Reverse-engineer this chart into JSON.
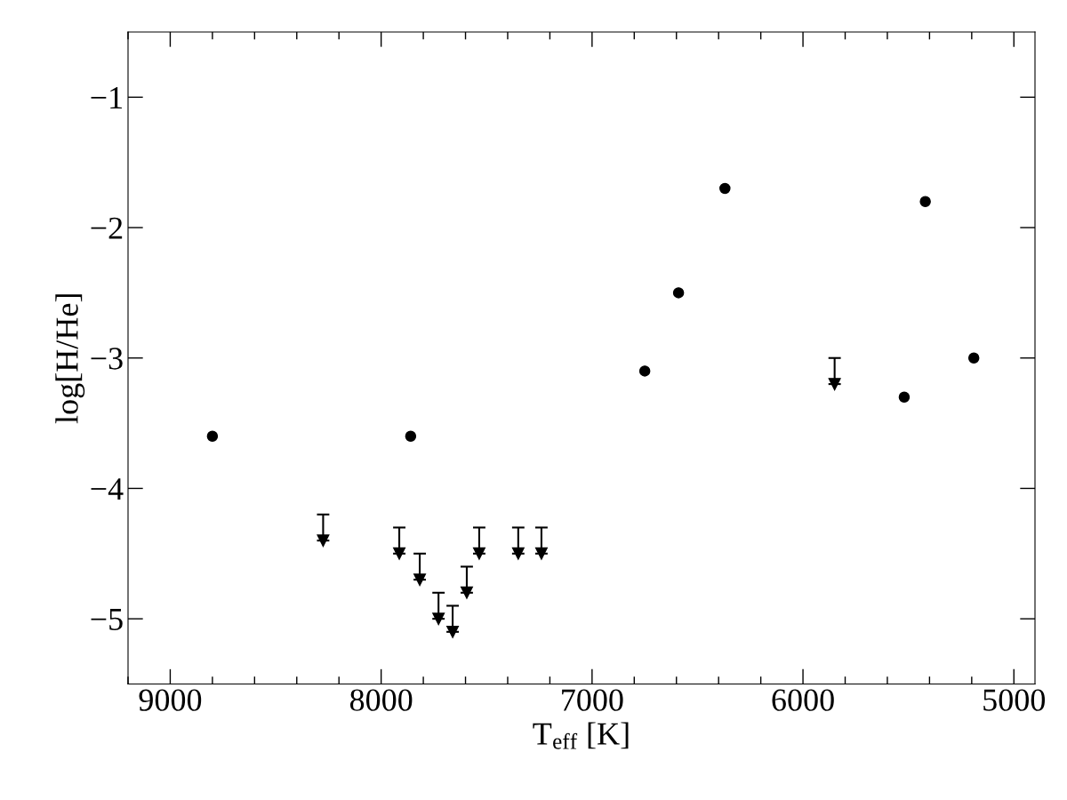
{
  "chart_data": {
    "type": "scatter",
    "xlabel": "T$_{eff}$ [K]",
    "ylabel": "log[H/He]",
    "xlim": [
      9200,
      4900
    ],
    "ylim": [
      -5.5,
      -0.5
    ],
    "xticks": [
      9000,
      8000,
      7000,
      6000,
      5000
    ],
    "yticks": [
      -5,
      -4,
      -3,
      -2,
      -1
    ],
    "grid": false,
    "series": [
      {
        "marker": "circle",
        "color": "#000000",
        "x": [
          8800,
          7860,
          6750,
          6590,
          6370,
          5520,
          5420,
          5190
        ],
        "values": [
          -3.6,
          -3.6,
          -3.1,
          -2.5,
          -1.7,
          -3.3,
          -1.8,
          -3.0
        ]
      },
      {
        "marker": "triangle",
        "color": "#000000",
        "x": [
          8275,
          7914,
          7817,
          7728,
          7661,
          7594,
          7535,
          7350,
          7240,
          5850
        ],
        "values": [
          -4.4,
          -4.5,
          -4.7,
          -5.0,
          -5.1,
          -4.8,
          -4.5,
          -4.5,
          -4.5,
          -3.2
        ],
        "errors": [
          [
            -4.4,
            -4.2
          ],
          [
            -4.5,
            -4.3
          ],
          [
            -4.7,
            -4.5
          ],
          [
            -5.0,
            -4.8
          ],
          [
            -5.1,
            -4.9
          ],
          [
            -4.8,
            -4.6
          ],
          [
            -4.5,
            -4.3
          ],
          [
            -4.5,
            -4.3
          ],
          [
            -4.5,
            -4.3
          ],
          [
            -3.2,
            -3.0
          ]
        ]
      }
    ]
  }
}
